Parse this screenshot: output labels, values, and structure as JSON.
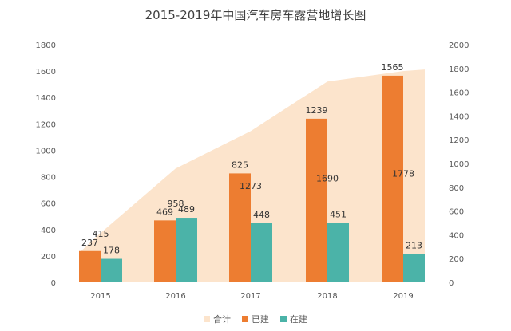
{
  "chart_data": {
    "type": "bar",
    "title": "2015-2019年中国汽车房车露营地增长图",
    "categories": [
      "2015",
      "2016",
      "2017",
      "2018",
      "2019"
    ],
    "series": [
      {
        "name": "合计",
        "type": "area",
        "axis": "right",
        "color": "#FCE4CC",
        "values": [
          415,
          958,
          1273,
          1690,
          1778
        ]
      },
      {
        "name": "已建",
        "type": "bar",
        "axis": "left",
        "color": "#ED7D31",
        "values": [
          237,
          469,
          825,
          1239,
          1565
        ]
      },
      {
        "name": "在建",
        "type": "bar",
        "axis": "left",
        "color": "#4BB3A8",
        "values": [
          178,
          489,
          448,
          451,
          213
        ]
      }
    ],
    "y_left": {
      "range": [
        0,
        1800
      ],
      "ticks": [
        "0",
        "200",
        "400",
        "600",
        "800",
        "1000",
        "1200",
        "1400",
        "1600",
        "1800"
      ]
    },
    "y_right": {
      "range": [
        0,
        2000
      ],
      "ticks": [
        "0",
        "200",
        "400",
        "600",
        "800",
        "1000",
        "1200",
        "1400",
        "1600",
        "1800",
        "2000"
      ]
    },
    "grid": false,
    "legend": "bottom"
  }
}
